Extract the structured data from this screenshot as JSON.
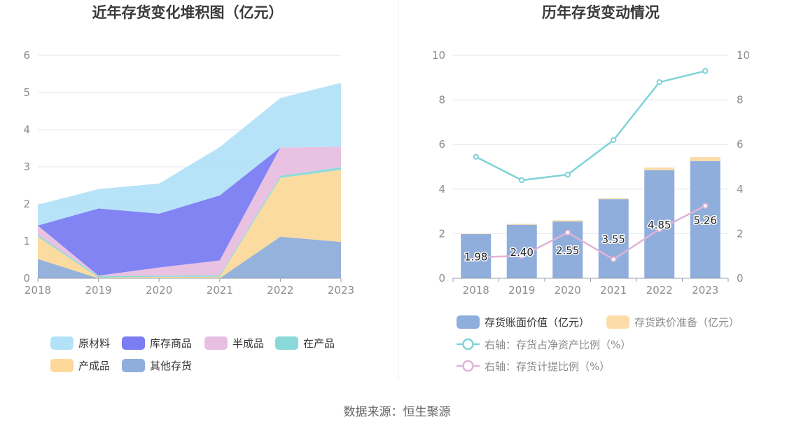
{
  "source": "数据来源：恒生聚源",
  "chart_data": [
    {
      "type": "area",
      "title": "近年存货变化堆积图（亿元）",
      "x": [
        "2018",
        "2019",
        "2020",
        "2021",
        "2022",
        "2023"
      ],
      "ylim": [
        0,
        6
      ],
      "yticks": [
        "0",
        "1",
        "2",
        "3",
        "4",
        "5",
        "6"
      ],
      "grid": true,
      "stacked": true,
      "legend_position": "bottom",
      "series": [
        {
          "name": "其他存货",
          "color": "#8faedb",
          "values": [
            0.52,
            0.0,
            0.0,
            0.0,
            1.12,
            0.98
          ]
        },
        {
          "name": "产成品",
          "color": "#fcd99b",
          "values": [
            0.6,
            0.02,
            0.04,
            0.04,
            1.58,
            1.94
          ]
        },
        {
          "name": "在产品",
          "color": "#8ad8d8",
          "values": [
            0.05,
            0.04,
            0.03,
            0.04,
            0.06,
            0.07
          ]
        },
        {
          "name": "半成品",
          "color": "#e8bfe0",
          "values": [
            0.25,
            0.01,
            0.22,
            0.4,
            0.76,
            0.55
          ]
        },
        {
          "name": "库存商品",
          "color": "#7b7df2",
          "values": [
            0.0,
            1.81,
            1.45,
            1.75,
            0.0,
            0.0
          ]
        },
        {
          "name": "原材料",
          "color": "#b3e2f8",
          "values": [
            0.56,
            0.52,
            0.81,
            1.3,
            1.33,
            1.72
          ]
        }
      ],
      "legend_order": [
        "原材料",
        "库存商品",
        "半成品",
        "在产品",
        "产成品",
        "其他存货"
      ]
    },
    {
      "type": "bar+line",
      "title": "历年存货变动情况",
      "x": [
        "2018",
        "2019",
        "2020",
        "2021",
        "2022",
        "2023"
      ],
      "ylim": [
        0,
        10
      ],
      "yticks": [
        "0",
        "2",
        "4",
        "6",
        "8",
        "10"
      ],
      "ylim_right": [
        0,
        10
      ],
      "yticks_right": [
        "0",
        "2",
        "4",
        "6",
        "8",
        "10"
      ],
      "grid": true,
      "legend_position": "bottom",
      "bars": [
        {
          "name": "存货账面价值（亿元）",
          "color": "#8faedb",
          "values": [
            1.98,
            2.4,
            2.55,
            3.55,
            4.85,
            5.26
          ],
          "labels": [
            "1.98",
            "2.40",
            "2.55",
            "3.55",
            "4.85",
            "5.26"
          ]
        },
        {
          "name": "存货跌价准备（亿元）",
          "color": "#fcdca8",
          "values": [
            0.02,
            0.04,
            0.05,
            0.04,
            0.12,
            0.18
          ]
        }
      ],
      "lines": [
        {
          "name": "右轴：存货占净资产比例（%）",
          "color": "#7fd3d6",
          "values": [
            5.45,
            4.4,
            4.65,
            6.2,
            8.8,
            9.3
          ]
        },
        {
          "name": "右轴：存货计提比例（%）",
          "color": "#e0b4d8",
          "values": [
            0.95,
            1.0,
            2.05,
            0.85,
            2.2,
            3.25
          ]
        }
      ]
    }
  ]
}
